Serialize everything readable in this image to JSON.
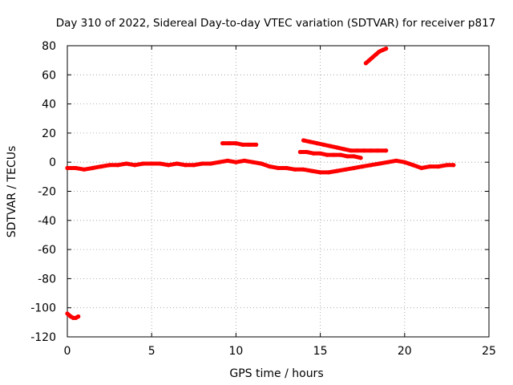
{
  "chart_data": {
    "type": "scatter",
    "title": "Day 310 of 2022, Sidereal Day-to-day VTEC variation (SDTVAR) for receiver p817",
    "xlabel": "GPS time / hours",
    "ylabel": "SDTVAR / TECUs",
    "xlim": [
      0,
      25
    ],
    "ylim": [
      -120,
      80
    ],
    "xticks": [
      "0",
      "5",
      "10",
      "15",
      "20",
      "25"
    ],
    "yticks": [
      "-120",
      "-100",
      "-80",
      "-60",
      "-40",
      "-20",
      "0",
      "20",
      "40",
      "60",
      "80"
    ],
    "grid": true,
    "marker_color": "#ff0000",
    "series": [
      {
        "name": "arc-early-negative",
        "points": [
          [
            0.0,
            -104
          ],
          [
            0.1,
            -105
          ],
          [
            0.2,
            -106
          ],
          [
            0.35,
            -107
          ],
          [
            0.5,
            -107
          ],
          [
            0.65,
            -106
          ]
        ]
      },
      {
        "name": "arc-main",
        "points": [
          [
            0.0,
            -4
          ],
          [
            0.5,
            -4
          ],
          [
            1.0,
            -5
          ],
          [
            1.5,
            -4
          ],
          [
            2.0,
            -3
          ],
          [
            2.5,
            -2
          ],
          [
            3.0,
            -2
          ],
          [
            3.5,
            -1
          ],
          [
            4.0,
            -2
          ],
          [
            4.5,
            -1
          ],
          [
            5.0,
            -1
          ],
          [
            5.5,
            -1
          ],
          [
            6.0,
            -2
          ],
          [
            6.5,
            -1
          ],
          [
            7.0,
            -2
          ],
          [
            7.5,
            -2
          ],
          [
            8.0,
            -1
          ],
          [
            8.5,
            -1
          ],
          [
            9.0,
            0
          ],
          [
            9.5,
            1
          ],
          [
            10.0,
            0
          ],
          [
            10.5,
            1
          ],
          [
            11.0,
            0
          ],
          [
            11.5,
            -1
          ],
          [
            12.0,
            -3
          ],
          [
            12.5,
            -4
          ],
          [
            13.0,
            -4
          ],
          [
            13.5,
            -5
          ],
          [
            14.0,
            -5
          ],
          [
            14.5,
            -6
          ],
          [
            15.0,
            -7
          ],
          [
            15.5,
            -7
          ],
          [
            16.0,
            -6
          ],
          [
            16.5,
            -5
          ],
          [
            17.0,
            -4
          ],
          [
            17.5,
            -3
          ],
          [
            18.0,
            -2
          ],
          [
            18.5,
            -1
          ],
          [
            19.0,
            0
          ],
          [
            19.5,
            1
          ],
          [
            20.0,
            0
          ],
          [
            20.5,
            -2
          ],
          [
            21.0,
            -4
          ],
          [
            21.5,
            -3
          ],
          [
            22.0,
            -3
          ],
          [
            22.5,
            -2
          ],
          [
            22.9,
            -2
          ]
        ]
      },
      {
        "name": "arc-mid-positive",
        "points": [
          [
            9.2,
            13
          ],
          [
            9.6,
            13
          ],
          [
            10.0,
            13
          ],
          [
            10.4,
            12
          ],
          [
            10.8,
            12
          ],
          [
            11.2,
            12
          ]
        ]
      },
      {
        "name": "arc-late-positive",
        "points": [
          [
            13.8,
            7
          ],
          [
            14.2,
            7
          ],
          [
            14.6,
            6
          ],
          [
            15.0,
            6
          ],
          [
            15.4,
            5
          ],
          [
            15.8,
            5
          ],
          [
            16.2,
            5
          ],
          [
            16.6,
            4
          ],
          [
            17.0,
            4
          ],
          [
            17.4,
            3
          ]
        ]
      },
      {
        "name": "arc-late-upper",
        "points": [
          [
            14.0,
            15
          ],
          [
            14.4,
            14
          ],
          [
            14.8,
            13
          ],
          [
            15.2,
            12
          ],
          [
            15.6,
            11
          ],
          [
            16.0,
            10
          ],
          [
            16.4,
            9
          ],
          [
            16.8,
            8
          ],
          [
            17.2,
            8
          ],
          [
            17.6,
            8
          ],
          [
            18.0,
            8
          ],
          [
            18.4,
            8
          ],
          [
            18.9,
            8
          ]
        ]
      },
      {
        "name": "arc-high",
        "points": [
          [
            17.7,
            68
          ],
          [
            17.9,
            70
          ],
          [
            18.1,
            72
          ],
          [
            18.3,
            74
          ],
          [
            18.5,
            76
          ],
          [
            18.7,
            77
          ],
          [
            18.9,
            78
          ]
        ]
      }
    ]
  }
}
